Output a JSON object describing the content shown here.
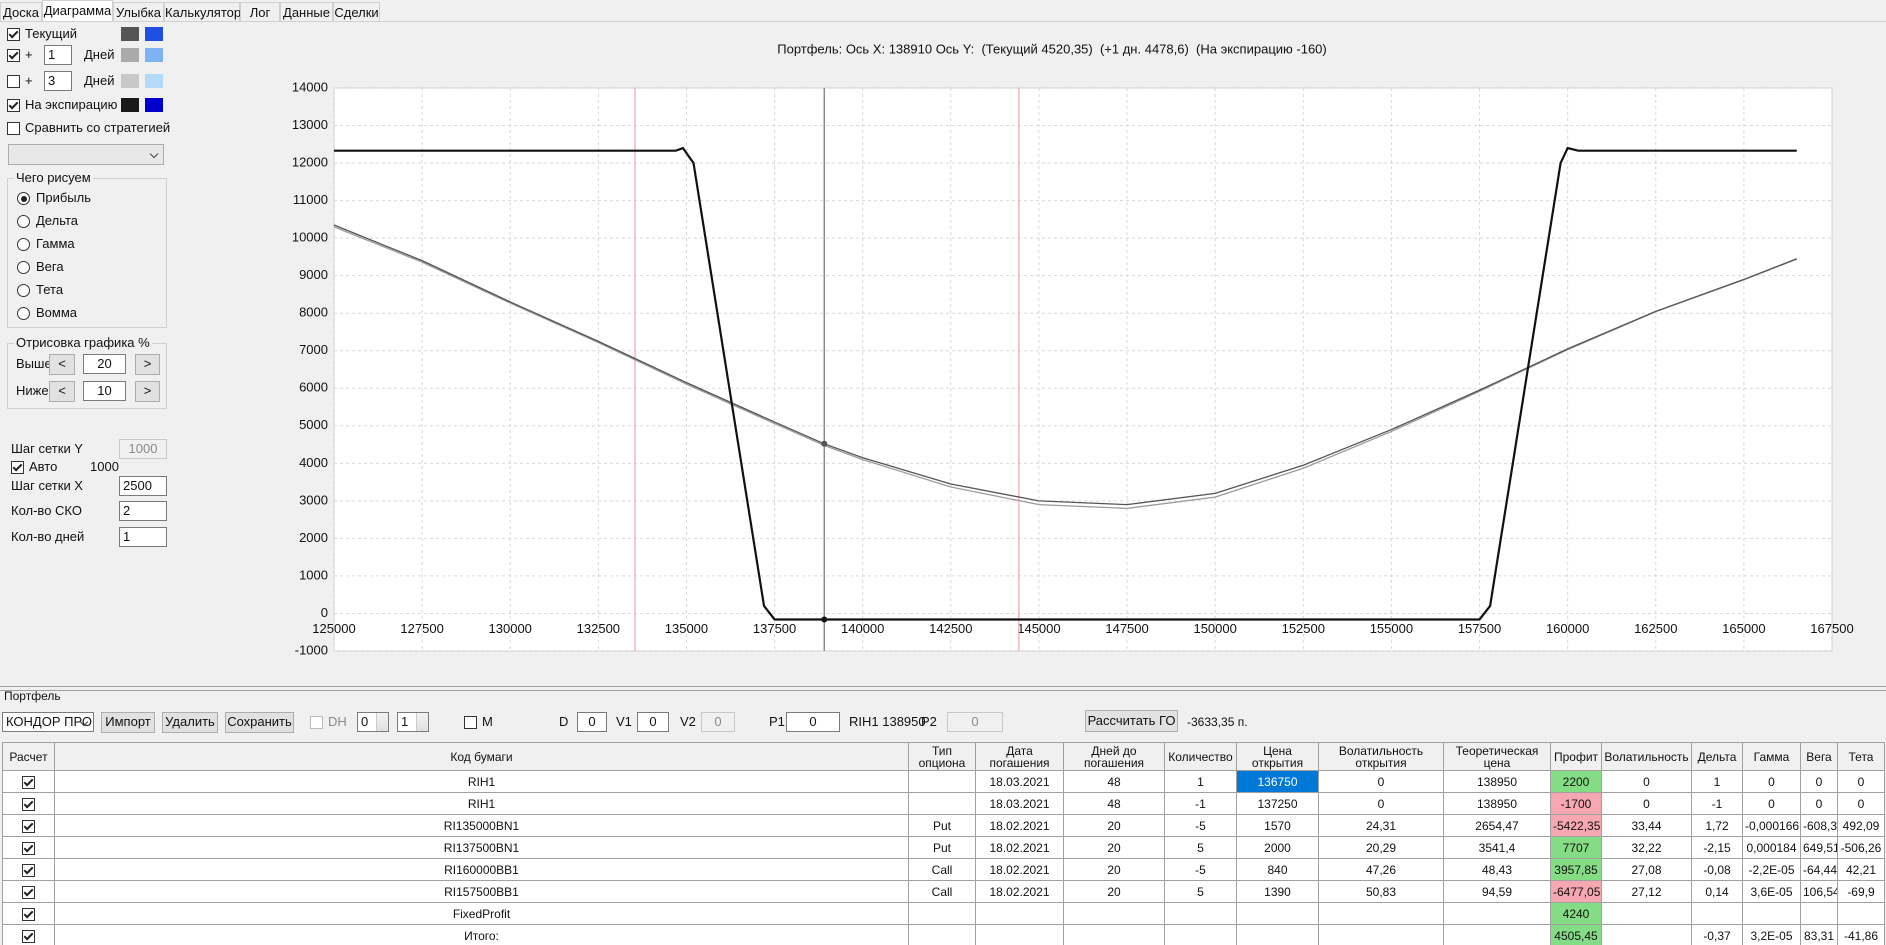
{
  "tabs": [
    "Доска",
    "Диаграмма",
    "Улыбка",
    "Калькулятор",
    "Лог",
    "Данные",
    "Сделки"
  ],
  "left_panel": {
    "lines": [
      {
        "label": "Текущий",
        "checked": true,
        "colors": [
          "#555555",
          "#1f4fe0"
        ]
      },
      {
        "prefix": "+",
        "days": "1",
        "label": "Дней",
        "checked": true,
        "colors": [
          "#aaaaaa",
          "#7fb2f5"
        ]
      },
      {
        "prefix": "+",
        "days": "3",
        "label": "Дней",
        "checked": false,
        "colors": [
          "#c8c8c8",
          "#b3d9fb"
        ]
      },
      {
        "label": "На экспирацию",
        "checked": true,
        "colors": [
          "#1a1a1a",
          "#0000cc"
        ]
      }
    ],
    "compare": {
      "label": "Сравнить со стратегией",
      "checked": false
    },
    "draw_group": {
      "title": "Чего рисуем",
      "options": [
        {
          "label": "Прибыль",
          "selected": true
        },
        {
          "label": "Дельта",
          "selected": false
        },
        {
          "label": "Гамма",
          "selected": false
        },
        {
          "label": "Вега",
          "selected": false
        },
        {
          "label": "Тета",
          "selected": false
        },
        {
          "label": "Вомма",
          "selected": false
        }
      ]
    },
    "render_group": {
      "title": "Отрисовка графика %",
      "above_label": "Выше",
      "above": "20",
      "below_label": "Ниже",
      "below": "10",
      "less": "<",
      "more": ">"
    },
    "grid_y_label": "Шаг сетки Y",
    "grid_y": "1000",
    "auto_label": "Авто",
    "auto_checked": true,
    "auto_value": "1000",
    "grid_x_label": "Шаг сетки X",
    "grid_x": "2500",
    "sko_label": "Кол-во СКО",
    "sko": "2",
    "days_label": "Кол-во дней",
    "days": "1"
  },
  "chart_data": {
    "type": "line",
    "title": "Портфель: Ось X: 138910 Ось Y:  (Текущий 4520,35)  (+1 дн. 4478,6)  (На экспирацию -160)",
    "xlim": [
      125000,
      167500
    ],
    "xticks": [
      125000,
      127500,
      130000,
      132500,
      135000,
      137500,
      140000,
      142500,
      145000,
      147500,
      150000,
      152500,
      155000,
      157500,
      160000,
      162500,
      165000,
      167500
    ],
    "ylim": [
      -1000,
      14000
    ],
    "yticks": [
      -1000,
      0,
      1000,
      2000,
      3000,
      4000,
      5000,
      6000,
      7000,
      8000,
      9000,
      10000,
      11000,
      12000,
      13000,
      14000
    ],
    "grid": true,
    "markers": [
      133540,
      144430
    ],
    "marker_color": "#f2a3ad",
    "cursor": 138910,
    "cursor_color": "#8c8c8c",
    "series": [
      {
        "color": "#9a9a9a",
        "x": [
          125000,
          127500,
          130000,
          132500,
          135000,
          137500,
          138910,
          140000,
          142500,
          145000,
          147500,
          150000,
          152500,
          155000,
          157500,
          160000,
          162500,
          165000,
          166500
        ],
        "values": [
          10300,
          9360,
          8270,
          7220,
          6110,
          5060,
          4478.6,
          4100,
          3370,
          2900,
          2800,
          3100,
          3870,
          4850,
          5920,
          7030,
          8040,
          8890,
          9440
        ]
      },
      {
        "color": "#555555",
        "x": [
          125000,
          127500,
          130000,
          132500,
          135000,
          137500,
          138910,
          140000,
          142500,
          145000,
          147500,
          150000,
          152500,
          155000,
          157500,
          160000,
          162500,
          165000,
          166500
        ],
        "values": [
          10350,
          9400,
          8300,
          7250,
          6150,
          5100,
          4520.35,
          4150,
          3450,
          3000,
          2900,
          3200,
          3950,
          4900,
          5950,
          7050,
          8050,
          8900,
          9450
        ]
      },
      {
        "color": "#111111",
        "x": [
          125000,
          134700,
          134900,
          135200,
          137200,
          137500,
          138910,
          157500,
          157800,
          159800,
          160000,
          160300,
          166500
        ],
        "values": [
          12330,
          12330,
          12400,
          12000,
          200,
          -160,
          -160,
          -160,
          200,
          12000,
          12400,
          12330,
          12330
        ]
      }
    ]
  },
  "portfolio": {
    "title": "Портфель",
    "strategy": "КОНДОР ПРО",
    "buttons": [
      "Импорт",
      "Удалить",
      "Сохранить"
    ],
    "dh": "DH",
    "spin1": "0",
    "spin2": "1",
    "m": "M",
    "d_label": "D",
    "d": "0",
    "v1_label": "V1",
    "v1": "0",
    "v2_label": "V2",
    "v2": "0",
    "p1_label": "P1",
    "p1": "0",
    "rih": "RIH1 138950",
    "p2_label": "P2",
    "p2": "0",
    "calc_button": "Рассчитать ГО",
    "go_result": "-3633,35 п."
  },
  "table": {
    "headers": [
      "Расчет",
      "Код бумаги",
      "Тип опциона",
      "Дата погашения",
      "Дней до погашения",
      "Количество",
      "Цена открытия",
      "Волатильность открытия",
      "Теоретическая цена",
      "Профит",
      "Волатильность",
      "Дельта",
      "Гамма",
      "Вега",
      "Тета"
    ],
    "rows": [
      [
        true,
        "RIH1",
        "",
        "18.03.2021",
        "48",
        "1",
        "136750",
        "0",
        "138950",
        "2200",
        "0",
        "1",
        "0",
        "0",
        "0"
      ],
      [
        true,
        "RIH1",
        "",
        "18.03.2021",
        "48",
        "-1",
        "137250",
        "0",
        "138950",
        "-1700",
        "0",
        "-1",
        "0",
        "0",
        "0"
      ],
      [
        true,
        "RI135000BN1",
        "Put",
        "18.02.2021",
        "20",
        "-5",
        "1570",
        "24,31",
        "2654,47",
        "-5422,35",
        "33,44",
        "1,72",
        "-0,000166",
        "-608,3",
        "492,09"
      ],
      [
        true,
        "RI137500BN1",
        "Put",
        "18.02.2021",
        "20",
        "5",
        "2000",
        "20,29",
        "3541,4",
        "7707",
        "32,22",
        "-2,15",
        "0,000184",
        "649,51",
        "-506,26"
      ],
      [
        true,
        "RI160000BB1",
        "Call",
        "18.02.2021",
        "20",
        "-5",
        "840",
        "47,26",
        "48,43",
        "3957,85",
        "27,08",
        "-0,08",
        "-2,2E-05",
        "-64,44",
        "42,21"
      ],
      [
        true,
        "RI157500BB1",
        "Call",
        "18.02.2021",
        "20",
        "5",
        "1390",
        "50,83",
        "94,59",
        "-6477,05",
        "27,12",
        "0,14",
        "3,6E-05",
        "106,54",
        "-69,9"
      ],
      [
        true,
        "FixedProfit",
        "",
        "",
        "",
        "",
        "",
        "",
        "",
        "4240",
        "",
        "",
        "",
        "",
        ""
      ],
      [
        true,
        "Итого:",
        "",
        "",
        "",
        "",
        "",
        "",
        "",
        "4505,45",
        "",
        "-0,37",
        "3,2E-05",
        "83,31",
        "-41,86"
      ]
    ]
  }
}
